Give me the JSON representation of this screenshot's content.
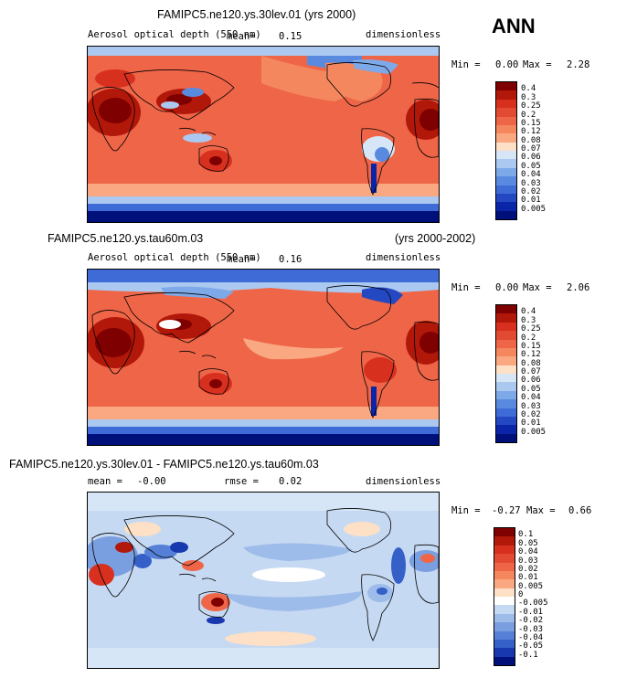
{
  "annual_label": "ANN",
  "panels": [
    {
      "title": "FAMIPC5.ne120.ys.30lev.01 (yrs 2000)",
      "subtitle": "",
      "field_label": "Aerosol optical depth (550 nm)",
      "mean_label": "mean=",
      "mean_value": "0.15",
      "units": "dimensionless",
      "min_label": "Min =",
      "min_value": "0.00",
      "max_label": "Max =",
      "max_value": "2.28",
      "levels": [
        "0.4",
        "0.3",
        "0.25",
        "0.2",
        "0.15",
        "0.12",
        "0.08",
        "0.07",
        "0.06",
        "0.05",
        "0.04",
        "0.03",
        "0.02",
        "0.01",
        "0.005"
      ],
      "colors": [
        "#7f0000",
        "#b2180a",
        "#d7301f",
        "#e34a33",
        "#ef6548",
        "#f4875e",
        "#f9a882",
        "#fde0c5",
        "#d6e6f7",
        "#aac8f0",
        "#7ea9e8",
        "#5a8ae0",
        "#3f6bd6",
        "#2447c2",
        "#0a25a8",
        "#00107a"
      ]
    },
    {
      "title": "FAMIPC5.ne120.ys.tau60m.03",
      "subtitle": "(yrs 2000-2002)",
      "field_label": "Aerosol optical depth (550 nm)",
      "mean_label": "mean=",
      "mean_value": "0.16",
      "units": "dimensionless",
      "min_label": "Min =",
      "min_value": "0.00",
      "max_label": "Max =",
      "max_value": "2.06",
      "levels": [
        "0.4",
        "0.3",
        "0.25",
        "0.2",
        "0.15",
        "0.12",
        "0.08",
        "0.07",
        "0.06",
        "0.05",
        "0.04",
        "0.03",
        "0.02",
        "0.01",
        "0.005"
      ],
      "colors": [
        "#7f0000",
        "#b2180a",
        "#d7301f",
        "#e34a33",
        "#ef6548",
        "#f4875e",
        "#f9a882",
        "#fde0c5",
        "#d6e6f7",
        "#aac8f0",
        "#7ea9e8",
        "#5a8ae0",
        "#3f6bd6",
        "#2447c2",
        "#0a25a8",
        "#00107a"
      ]
    },
    {
      "title": "FAMIPC5.ne120.ys.30lev.01 - FAMIPC5.ne120.ys.tau60m.03",
      "subtitle": "",
      "field_label": "",
      "mean_label": "mean =",
      "mean_value": "-0.00",
      "rmse_label": "rmse =",
      "rmse_value": "0.02",
      "units": "dimensionless",
      "min_label": "Min =",
      "min_value": "-0.27",
      "max_label": "Max =",
      "max_value": "0.66",
      "levels": [
        "0.1",
        "0.05",
        "0.04",
        "0.03",
        "0.02",
        "0.01",
        "0.005",
        "0",
        "-0.005",
        "-0.01",
        "-0.02",
        "-0.03",
        "-0.04",
        "-0.05",
        "-0.1"
      ],
      "colors": [
        "#7f0000",
        "#b2180a",
        "#d7301f",
        "#e34a33",
        "#ef6548",
        "#f4875e",
        "#f9a882",
        "#fde0c5",
        "#ffffff",
        "#c6d9f2",
        "#9dbce9",
        "#7a9fe0",
        "#5580d6",
        "#3560c8",
        "#1838b0",
        "#00107a"
      ]
    }
  ],
  "chart_data": [
    {
      "type": "heatmap",
      "title": "FAMIPC5.ne120.ys.30lev.01 (yrs 2000)",
      "variable": "Aerosol optical depth (550 nm)",
      "units": "dimensionless",
      "mean": 0.15,
      "min": 0.0,
      "max": 2.28,
      "contour_levels": [
        0.005,
        0.01,
        0.02,
        0.03,
        0.04,
        0.05,
        0.06,
        0.07,
        0.08,
        0.12,
        0.15,
        0.2,
        0.25,
        0.3,
        0.4
      ]
    },
    {
      "type": "heatmap",
      "title": "FAMIPC5.ne120.ys.tau60m.03 (yrs 2000-2002)",
      "variable": "Aerosol optical depth (550 nm)",
      "units": "dimensionless",
      "mean": 0.16,
      "min": 0.0,
      "max": 2.06,
      "contour_levels": [
        0.005,
        0.01,
        0.02,
        0.03,
        0.04,
        0.05,
        0.06,
        0.07,
        0.08,
        0.12,
        0.15,
        0.2,
        0.25,
        0.3,
        0.4
      ]
    },
    {
      "type": "heatmap",
      "title": "FAMIPC5.ne120.ys.30lev.01 - FAMIPC5.ne120.ys.tau60m.03",
      "units": "dimensionless",
      "mean": -0.0,
      "rmse": 0.02,
      "min": -0.27,
      "max": 0.66,
      "contour_levels": [
        -0.1,
        -0.05,
        -0.04,
        -0.03,
        -0.02,
        -0.01,
        -0.005,
        0,
        0.005,
        0.01,
        0.02,
        0.03,
        0.04,
        0.05,
        0.1
      ]
    }
  ]
}
